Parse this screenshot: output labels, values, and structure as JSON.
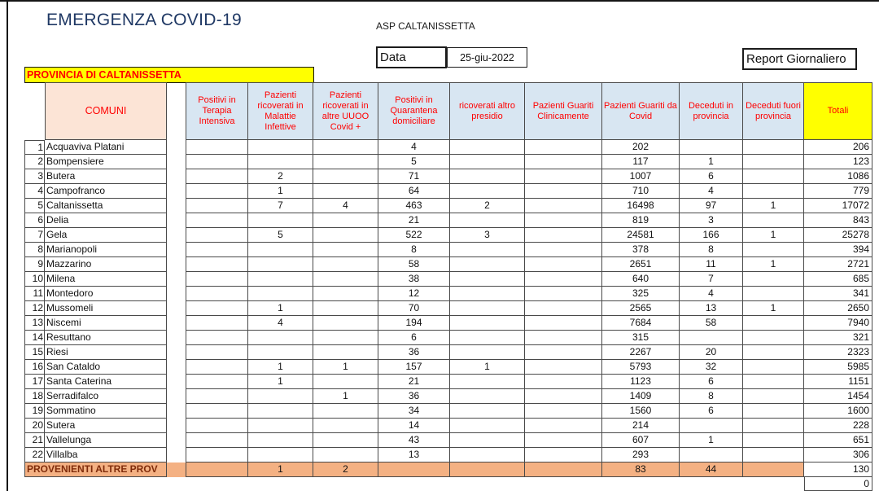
{
  "header": {
    "title": "EMERGENZA COVID-19",
    "org": "ASP CALTANISSETTA",
    "date_label": "Data",
    "date_value": "25-giu-2022",
    "report_label": "Report Giornaliero",
    "province_banner": "PROVINCIA DI CALTANISSETTA"
  },
  "colors": {
    "title_navy": "#1F3864",
    "header_text_red": "#FF0000",
    "header_blue_bg": "#D8E6F2",
    "comuni_peach_bg": "#FCE4D6",
    "totali_yellow_bg": "#FFFF00",
    "footer_orange_bg": "#F4B183",
    "footer_text_dark_red": "#7F2B0A"
  },
  "table": {
    "comuni_header": "COMUNI",
    "columns": [
      "Positivi in Terapia Intensiva",
      "Pazienti ricoverati in Malattie Infettive",
      "Pazienti ricoverati in altre UUOO Covid +",
      "Positivi in Quarantena domiciliare",
      "ricoverati altro presidio",
      "Pazienti Guariti Clinicamente",
      "Pazienti Guariti da Covid",
      "Deceduti in provincia",
      "Deceduti fuori provincia",
      "Totali"
    ],
    "rows": [
      {
        "n": "1",
        "comune": "Acquaviva Platani",
        "values": [
          "",
          "",
          "",
          "4",
          "",
          "",
          "202",
          "",
          "",
          "206"
        ]
      },
      {
        "n": "2",
        "comune": "Bompensiere",
        "values": [
          "",
          "",
          "",
          "5",
          "",
          "",
          "117",
          "1",
          "",
          "123"
        ]
      },
      {
        "n": "3",
        "comune": "Butera",
        "values": [
          "",
          "2",
          "",
          "71",
          "",
          "",
          "1007",
          "6",
          "",
          "1086"
        ]
      },
      {
        "n": "4",
        "comune": "Campofranco",
        "values": [
          "",
          "1",
          "",
          "64",
          "",
          "",
          "710",
          "4",
          "",
          "779"
        ]
      },
      {
        "n": "5",
        "comune": "Caltanissetta",
        "values": [
          "",
          "7",
          "4",
          "463",
          "2",
          "",
          "16498",
          "97",
          "1",
          "17072"
        ]
      },
      {
        "n": "6",
        "comune": "Delia",
        "values": [
          "",
          "",
          "",
          "21",
          "",
          "",
          "819",
          "3",
          "",
          "843"
        ]
      },
      {
        "n": "7",
        "comune": "Gela",
        "values": [
          "",
          "5",
          "",
          "522",
          "3",
          "",
          "24581",
          "166",
          "1",
          "25278"
        ]
      },
      {
        "n": "8",
        "comune": "Marianopoli",
        "values": [
          "",
          "",
          "",
          "8",
          "",
          "",
          "378",
          "8",
          "",
          "394"
        ]
      },
      {
        "n": "9",
        "comune": "Mazzarino",
        "values": [
          "",
          "",
          "",
          "58",
          "",
          "",
          "2651",
          "11",
          "1",
          "2721"
        ]
      },
      {
        "n": "10",
        "comune": "Milena",
        "values": [
          "",
          "",
          "",
          "38",
          "",
          "",
          "640",
          "7",
          "",
          "685"
        ]
      },
      {
        "n": "11",
        "comune": "Montedoro",
        "values": [
          "",
          "",
          "",
          "12",
          "",
          "",
          "325",
          "4",
          "",
          "341"
        ]
      },
      {
        "n": "12",
        "comune": "Mussomeli",
        "values": [
          "",
          "1",
          "",
          "70",
          "",
          "",
          "2565",
          "13",
          "1",
          "2650"
        ]
      },
      {
        "n": "13",
        "comune": "Niscemi",
        "values": [
          "",
          "4",
          "",
          "194",
          "",
          "",
          "7684",
          "58",
          "",
          "7940"
        ]
      },
      {
        "n": "14",
        "comune": "Resuttano",
        "values": [
          "",
          "",
          "",
          "6",
          "",
          "",
          "315",
          "",
          "",
          "321"
        ]
      },
      {
        "n": "15",
        "comune": "Riesi",
        "values": [
          "",
          "",
          "",
          "36",
          "",
          "",
          "2267",
          "20",
          "",
          "2323"
        ]
      },
      {
        "n": "16",
        "comune": "San Cataldo",
        "values": [
          "",
          "1",
          "1",
          "157",
          "1",
          "",
          "5793",
          "32",
          "",
          "5985"
        ]
      },
      {
        "n": "17",
        "comune": "Santa Caterina",
        "values": [
          "",
          "1",
          "",
          "21",
          "",
          "",
          "1123",
          "6",
          "",
          "1151"
        ]
      },
      {
        "n": "18",
        "comune": "Serradifalco",
        "values": [
          "",
          "",
          "1",
          "36",
          "",
          "",
          "1409",
          "8",
          "",
          "1454"
        ]
      },
      {
        "n": "19",
        "comune": "Sommatino",
        "values": [
          "",
          "",
          "",
          "34",
          "",
          "",
          "1560",
          "6",
          "",
          "1600"
        ]
      },
      {
        "n": "20",
        "comune": "Sutera",
        "values": [
          "",
          "",
          "",
          "14",
          "",
          "",
          "214",
          "",
          "",
          "228"
        ]
      },
      {
        "n": "21",
        "comune": "Vallelunga",
        "values": [
          "",
          "",
          "",
          "43",
          "",
          "",
          "607",
          "1",
          "",
          "651"
        ]
      },
      {
        "n": "22",
        "comune": "Villalba",
        "values": [
          "",
          "",
          "",
          "13",
          "",
          "",
          "293",
          "",
          "",
          "306"
        ]
      }
    ],
    "footer_row": {
      "label": "PROVENIENTI ALTRE PROV",
      "values": [
        "",
        "1",
        "2",
        "",
        "",
        "",
        "83",
        "44",
        "",
        "130"
      ]
    },
    "trailing_total": "0"
  }
}
